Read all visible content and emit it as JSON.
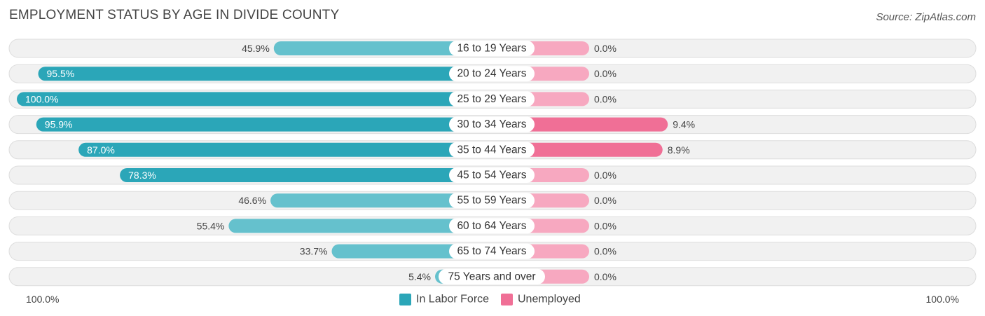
{
  "title": "EMPLOYMENT STATUS BY AGE IN DIVIDE COUNTY",
  "source": "Source: ZipAtlas.com",
  "colors": {
    "labor_strong": "#2ba6b8",
    "labor_light": "#65c1cd",
    "unemployed_strong": "#f06f96",
    "unemployed_light": "#f7a8c0",
    "row_background": "#f1f1f1"
  },
  "chart_data": {
    "type": "bar",
    "orientation": "horizontal-diverging",
    "title": "EMPLOYMENT STATUS BY AGE IN DIVIDE COUNTY",
    "categories": [
      "16 to 19 Years",
      "20 to 24 Years",
      "25 to 29 Years",
      "30 to 34 Years",
      "35 to 44 Years",
      "45 to 54 Years",
      "55 to 59 Years",
      "60 to 64 Years",
      "65 to 74 Years",
      "75 Years and over"
    ],
    "series": [
      {
        "name": "In Labor Force",
        "side": "left",
        "values": [
          45.9,
          95.5,
          100.0,
          95.9,
          87.0,
          78.3,
          46.6,
          55.4,
          33.7,
          5.4
        ],
        "labels": [
          "45.9%",
          "95.5%",
          "100.0%",
          "95.9%",
          "87.0%",
          "78.3%",
          "46.6%",
          "55.4%",
          "33.7%",
          "5.4%"
        ]
      },
      {
        "name": "Unemployed",
        "side": "right",
        "values": [
          0.0,
          0.0,
          0.0,
          9.4,
          8.9,
          0.0,
          0.0,
          0.0,
          0.0,
          0.0
        ],
        "labels": [
          "0.0%",
          "0.0%",
          "0.0%",
          "9.4%",
          "8.9%",
          "0.0%",
          "0.0%",
          "0.0%",
          "0.0%",
          "0.0%"
        ]
      }
    ],
    "axis": {
      "left_label": "100.0%",
      "right_label": "100.0%",
      "xlim_left": [
        0,
        100
      ],
      "xlim_right": [
        0,
        100
      ]
    },
    "legend": {
      "position": "bottom-center",
      "items": [
        "In Labor Force",
        "Unemployed"
      ]
    }
  }
}
